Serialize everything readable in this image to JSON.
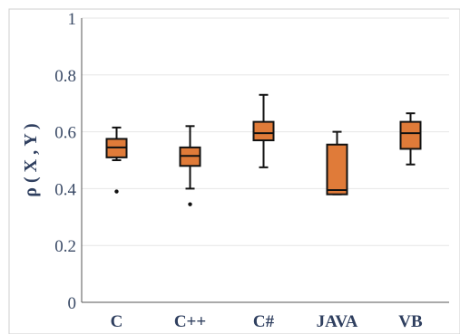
{
  "chart_data": {
    "type": "box",
    "title": "",
    "xlabel": "",
    "ylabel": "ρ ( X , Y )",
    "ylim": [
      0,
      1
    ],
    "yticks": [
      0,
      0.2,
      0.4,
      0.6,
      0.8,
      1
    ],
    "ytick_labels": [
      "0",
      "0.2",
      "0.4",
      "0.6",
      "0.8",
      "1"
    ],
    "grid": "horizontal",
    "box_color": "#e07b39",
    "categories": [
      "C",
      "C++",
      "C#",
      "JAVA",
      "VB"
    ],
    "boxes": [
      {
        "category": "C",
        "whisker_low": 0.5,
        "q1": 0.51,
        "median": 0.545,
        "q3": 0.575,
        "whisker_high": 0.615,
        "outliers": [
          0.39
        ]
      },
      {
        "category": "C++",
        "whisker_low": 0.4,
        "q1": 0.48,
        "median": 0.515,
        "q3": 0.545,
        "whisker_high": 0.62,
        "outliers": [
          0.345
        ]
      },
      {
        "category": "C#",
        "whisker_low": 0.475,
        "q1": 0.57,
        "median": 0.595,
        "q3": 0.635,
        "whisker_high": 0.73,
        "outliers": []
      },
      {
        "category": "JAVA",
        "whisker_low": 0.38,
        "q1": 0.38,
        "median": 0.395,
        "q3": 0.555,
        "whisker_high": 0.6,
        "outliers": []
      },
      {
        "category": "VB",
        "whisker_low": 0.485,
        "q1": 0.54,
        "median": 0.595,
        "q3": 0.635,
        "whisker_high": 0.665,
        "outliers": []
      }
    ]
  }
}
